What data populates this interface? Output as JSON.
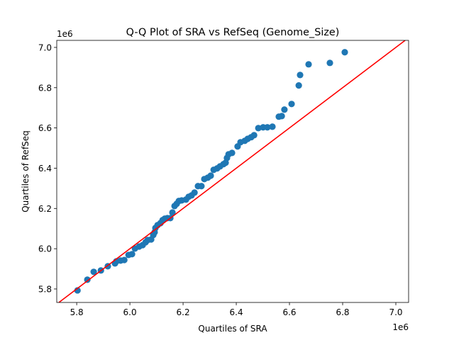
{
  "chart_data": {
    "type": "scatter",
    "title": "Q-Q Plot of SRA vs RefSeq (Genome_Size)",
    "xlabel": "Quartiles of SRA",
    "ylabel": "Quartiles of RefSeq",
    "x_offset_label": "1e6",
    "y_offset_label": "1e6",
    "xlim": [
      5.725,
      7.048
    ],
    "ylim": [
      5.733,
      7.035
    ],
    "xticks": [
      5.8,
      6.0,
      6.2,
      6.4,
      6.6,
      6.8,
      7.0
    ],
    "xtick_labels": [
      "5.8",
      "6.0",
      "6.2",
      "6.4",
      "6.6",
      "6.8",
      "7.0"
    ],
    "yticks": [
      5.8,
      6.0,
      6.2,
      6.4,
      6.6,
      6.8,
      7.0
    ],
    "ytick_labels": [
      "5.8",
      "6.0",
      "6.2",
      "6.4",
      "6.6",
      "6.8",
      "7.0"
    ],
    "grid": false,
    "point_color": "#1f77b4",
    "reference_line": {
      "type": "y=x",
      "color": "#ff0000"
    },
    "points": [
      [
        5.803,
        5.793
      ],
      [
        5.84,
        5.846
      ],
      [
        5.864,
        5.885
      ],
      [
        5.891,
        5.892
      ],
      [
        5.917,
        5.913
      ],
      [
        5.944,
        5.927
      ],
      [
        5.949,
        5.937
      ],
      [
        5.965,
        5.941
      ],
      [
        5.979,
        5.944
      ],
      [
        5.995,
        5.969
      ],
      [
        6.008,
        5.973
      ],
      [
        6.019,
        6.001
      ],
      [
        6.035,
        6.011
      ],
      [
        6.048,
        6.018
      ],
      [
        6.059,
        6.032
      ],
      [
        6.067,
        6.043
      ],
      [
        6.08,
        6.046
      ],
      [
        6.088,
        6.068
      ],
      [
        6.093,
        6.082
      ],
      [
        6.096,
        6.103
      ],
      [
        6.104,
        6.117
      ],
      [
        6.115,
        6.127
      ],
      [
        6.123,
        6.142
      ],
      [
        6.131,
        6.149
      ],
      [
        6.141,
        6.152
      ],
      [
        6.152,
        6.152
      ],
      [
        6.16,
        6.18
      ],
      [
        6.168,
        6.212
      ],
      [
        6.176,
        6.223
      ],
      [
        6.184,
        6.237
      ],
      [
        6.195,
        6.24
      ],
      [
        6.211,
        6.244
      ],
      [
        6.221,
        6.258
      ],
      [
        6.232,
        6.265
      ],
      [
        6.243,
        6.279
      ],
      [
        6.256,
        6.311
      ],
      [
        6.269,
        6.311
      ],
      [
        6.28,
        6.346
      ],
      [
        6.293,
        6.353
      ],
      [
        6.304,
        6.363
      ],
      [
        6.315,
        6.392
      ],
      [
        6.328,
        6.399
      ],
      [
        6.339,
        6.409
      ],
      [
        6.352,
        6.42
      ],
      [
        6.36,
        6.427
      ],
      [
        6.365,
        6.451
      ],
      [
        6.371,
        6.469
      ],
      [
        6.384,
        6.476
      ],
      [
        6.405,
        6.508
      ],
      [
        6.416,
        6.529
      ],
      [
        6.432,
        6.536
      ],
      [
        6.443,
        6.546
      ],
      [
        6.456,
        6.554
      ],
      [
        6.467,
        6.564
      ],
      [
        6.483,
        6.599
      ],
      [
        6.501,
        6.603
      ],
      [
        6.517,
        6.603
      ],
      [
        6.536,
        6.606
      ],
      [
        6.56,
        6.656
      ],
      [
        6.571,
        6.659
      ],
      [
        6.581,
        6.691
      ],
      [
        6.608,
        6.719
      ],
      [
        6.635,
        6.811
      ],
      [
        6.64,
        6.863
      ],
      [
        6.672,
        6.916
      ],
      [
        6.752,
        6.923
      ],
      [
        6.808,
        6.976
      ]
    ]
  }
}
